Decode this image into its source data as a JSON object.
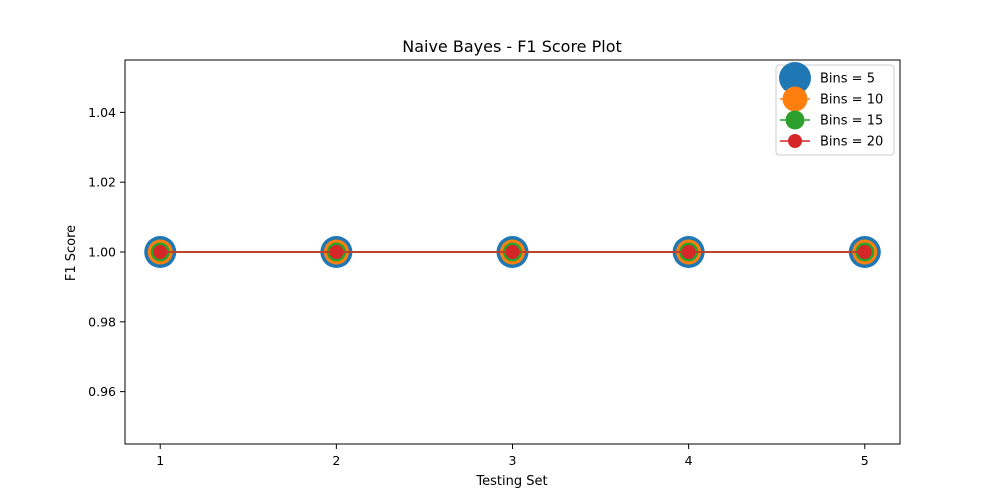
{
  "chart_data": {
    "type": "line",
    "title": "Naive Bayes - F1 Score Plot",
    "xlabel": "Testing Set",
    "ylabel": "F1 Score",
    "x": [
      1,
      2,
      3,
      4,
      5
    ],
    "x_ticks": [
      "1",
      "2",
      "3",
      "4",
      "5"
    ],
    "y_ticks": [
      "0.96",
      "0.98",
      "1.00",
      "1.02",
      "1.04"
    ],
    "xlim": [
      0.8,
      5.2
    ],
    "ylim": [
      0.945,
      1.055
    ],
    "grid": false,
    "legend_position": "top-right",
    "series": [
      {
        "name": "Bins = 5",
        "values": [
          1,
          1,
          1,
          1,
          1
        ],
        "color": "#1f77b4",
        "marker": "large-circle"
      },
      {
        "name": "Bins = 10",
        "values": [
          1,
          1,
          1,
          1,
          1
        ],
        "color": "#ff7f0e",
        "marker": "medium-circle"
      },
      {
        "name": "Bins = 15",
        "values": [
          1,
          1,
          1,
          1,
          1
        ],
        "color": "#2ca02c",
        "marker": "small-circle"
      },
      {
        "name": "Bins = 20",
        "values": [
          1,
          1,
          1,
          1,
          1
        ],
        "color": "#d62728",
        "marker": "dot"
      }
    ]
  }
}
